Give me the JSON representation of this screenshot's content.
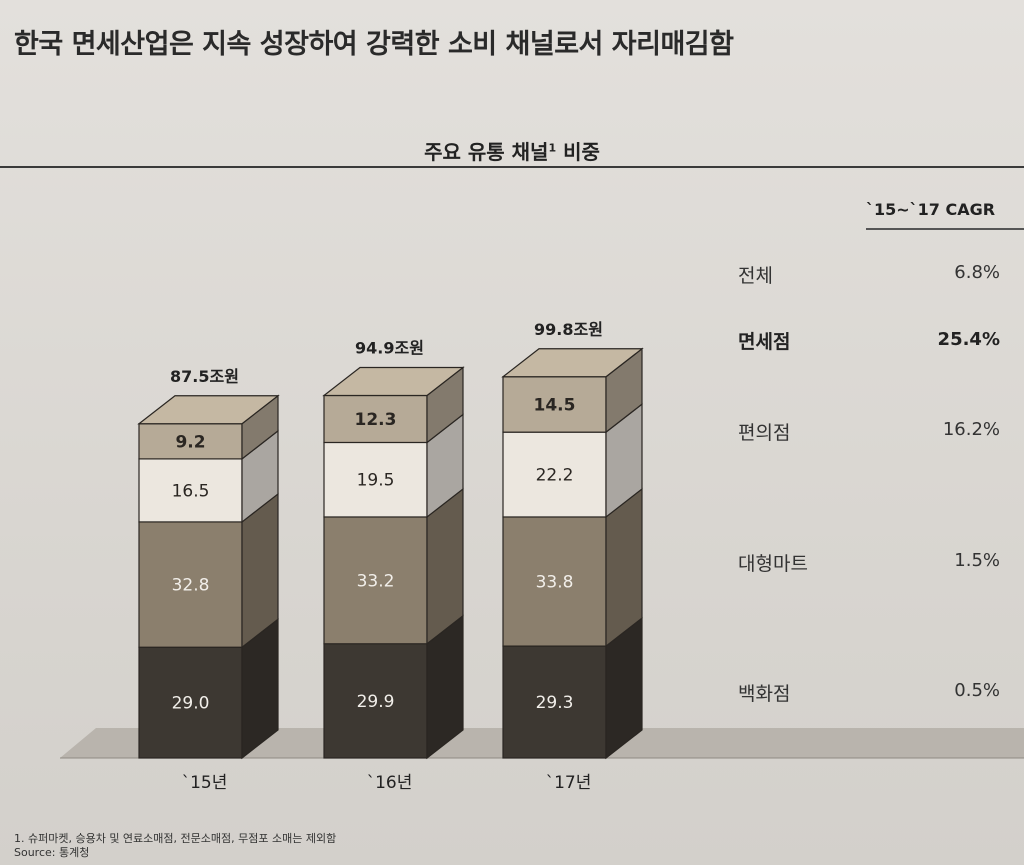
{
  "headline": "한국 면세산업은 지속 성장하여 강력한 소비 채널로서 자리매김함",
  "chart_title_text": "주요 유통 채널",
  "chart_title_sup": "1",
  "chart_title_tail": " 비중",
  "cagr_header": "`15~`17 CAGR",
  "footnote": "1. 슈퍼마켓, 승용차 및 연료소매점, 전문소매점, 무점포 소매는 제외함",
  "source": "Source: 통계청",
  "chart_data": {
    "type": "bar",
    "stacked": true,
    "categories": [
      "`15년",
      "`16년",
      "`17년"
    ],
    "totals": [
      "87.5조원",
      "94.9조원",
      "99.8조원"
    ],
    "series": [
      {
        "name": "백화점",
        "values": [
          29.0,
          29.9,
          29.3
        ],
        "labels": [
          "29.0",
          "29.9",
          "29.3"
        ],
        "color": "#3d3832",
        "cagr": "0.5%"
      },
      {
        "name": "대형마트",
        "values": [
          32.8,
          33.2,
          33.8
        ],
        "labels": [
          "32.8",
          "33.2",
          "33.8"
        ],
        "color": "#8b7f6d",
        "cagr": "1.5%"
      },
      {
        "name": "편의점",
        "values": [
          16.5,
          19.5,
          22.2
        ],
        "labels": [
          "16.5",
          "19.5",
          "22.2"
        ],
        "color": "#ece7df",
        "cagr": "16.2%"
      },
      {
        "name": "면세점",
        "values": [
          9.2,
          12.3,
          14.5
        ],
        "labels": [
          "9.2",
          "12.3",
          "14.5"
        ],
        "color": "#b6aa97",
        "cagr": "25.4%"
      }
    ],
    "overall": {
      "name": "전체",
      "cagr": "6.8%"
    }
  }
}
